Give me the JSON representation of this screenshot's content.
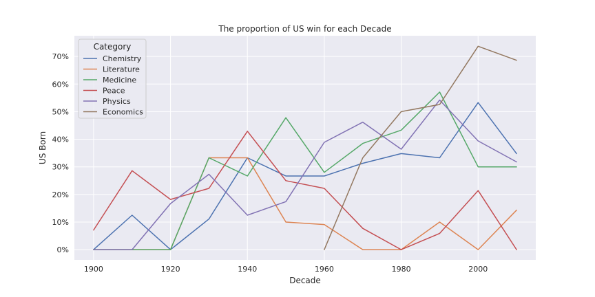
{
  "chart_data": {
    "type": "line",
    "title": "The proportion of US win for each Decade",
    "xlabel": "Decade",
    "ylabel": "US Born",
    "xlim": [
      1895,
      2015
    ],
    "ylim": [
      -0.037,
      0.775
    ],
    "x_ticks": [
      1900,
      1920,
      1940,
      1960,
      1980,
      2000
    ],
    "y_ticks": [
      0,
      0.1,
      0.2,
      0.3,
      0.4,
      0.5,
      0.6,
      0.7
    ],
    "y_tick_labels": [
      "0%",
      "10%",
      "20%",
      "30%",
      "40%",
      "50%",
      "60%",
      "70%"
    ],
    "grid": true,
    "legend": {
      "title": "Category",
      "placement": "top-left"
    },
    "series": [
      {
        "name": "Chemistry",
        "color": "#4c72b0",
        "x": [
          1900,
          1910,
          1920,
          1930,
          1940,
          1950,
          1960,
          1970,
          1980,
          1990,
          2000,
          2010
        ],
        "y": [
          0.0,
          0.125,
          0.0,
          0.111,
          0.333,
          0.267,
          0.267,
          0.313,
          0.348,
          0.333,
          0.533,
          0.348
        ]
      },
      {
        "name": "Literature",
        "color": "#dd8452",
        "x": [
          1900,
          1910,
          1920,
          1930,
          1940,
          1950,
          1960,
          1970,
          1980,
          1990,
          2000,
          2010
        ],
        "y": [
          0.0,
          0.0,
          0.0,
          0.333,
          0.333,
          0.1,
          0.091,
          0.0,
          0.0,
          0.1,
          0.0,
          0.143
        ]
      },
      {
        "name": "Medicine",
        "color": "#55a868",
        "x": [
          1900,
          1910,
          1920,
          1930,
          1940,
          1950,
          1960,
          1970,
          1980,
          1990,
          2000,
          2010
        ],
        "y": [
          0.0,
          0.0,
          0.0,
          0.333,
          0.267,
          0.478,
          0.28,
          0.385,
          0.433,
          0.571,
          0.3,
          0.3
        ]
      },
      {
        "name": "Peace",
        "color": "#c44e52",
        "x": [
          1900,
          1910,
          1920,
          1930,
          1940,
          1950,
          1960,
          1970,
          1980,
          1990,
          2000,
          2010
        ],
        "y": [
          0.071,
          0.286,
          0.182,
          0.222,
          0.429,
          0.25,
          0.222,
          0.077,
          0.0,
          0.059,
          0.214,
          0.0
        ]
      },
      {
        "name": "Physics",
        "color": "#8172b3",
        "x": [
          1900,
          1910,
          1920,
          1930,
          1940,
          1950,
          1960,
          1970,
          1980,
          1990,
          2000,
          2010
        ],
        "y": [
          0.0,
          0.0,
          0.167,
          0.273,
          0.125,
          0.174,
          0.389,
          0.462,
          0.364,
          0.542,
          0.394,
          0.318
        ]
      },
      {
        "name": "Economics",
        "color": "#937860",
        "x": [
          1960,
          1970,
          1980,
          1990,
          2000,
          2010
        ],
        "y": [
          0.0,
          0.333,
          0.5,
          0.526,
          0.737,
          0.686
        ]
      }
    ]
  }
}
